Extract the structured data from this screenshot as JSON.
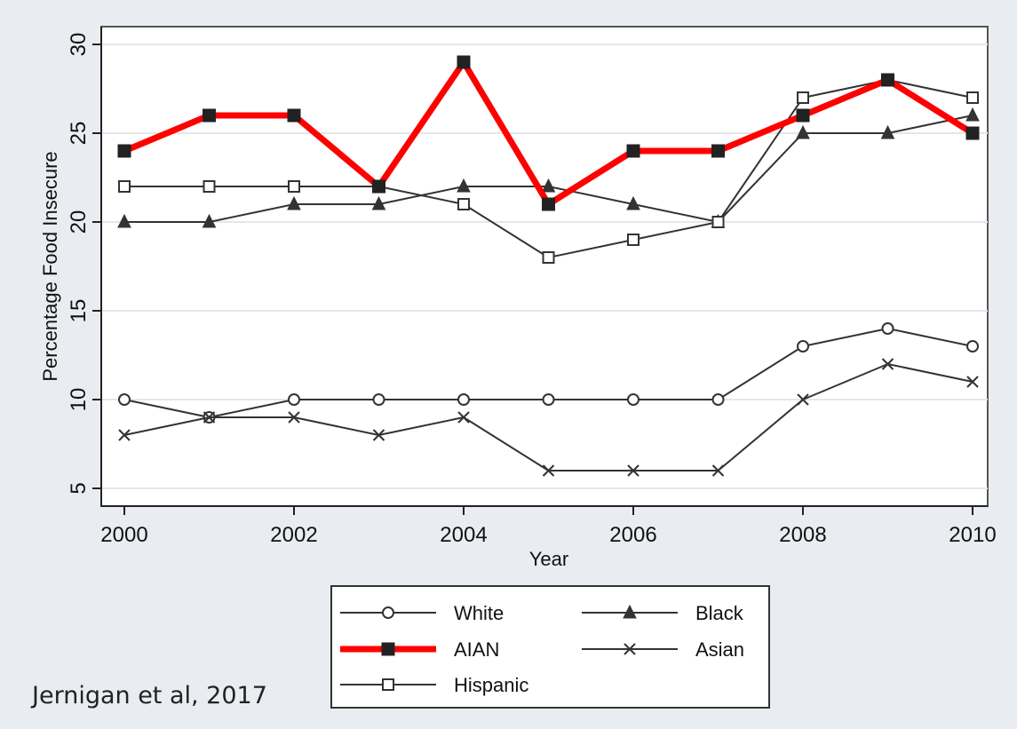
{
  "chart_data": {
    "type": "line",
    "xlabel": "Year",
    "ylabel": "Percentage Food Insecure",
    "xlim": [
      2000,
      2010
    ],
    "ylim": [
      5,
      30
    ],
    "x_ticks": [
      2000,
      2002,
      2004,
      2006,
      2008,
      2010
    ],
    "y_ticks": [
      5,
      10,
      15,
      20,
      25,
      30
    ],
    "grid": "horizontal",
    "legend_position": "bottom",
    "x": [
      2000,
      2001,
      2002,
      2003,
      2004,
      2005,
      2006,
      2007,
      2008,
      2009,
      2010
    ],
    "series": [
      {
        "name": "White",
        "marker": "circle",
        "color": "#333333",
        "highlight": false,
        "values": [
          10,
          9,
          10,
          10,
          10,
          10,
          10,
          10,
          13,
          14,
          13
        ]
      },
      {
        "name": "Black",
        "marker": "triangle",
        "color": "#333333",
        "highlight": false,
        "values": [
          20,
          20,
          21,
          21,
          22,
          22,
          21,
          20,
          25,
          25,
          26
        ]
      },
      {
        "name": "AIAN",
        "marker": "filled-square",
        "color": "#ff0000",
        "highlight": true,
        "values": [
          24,
          26,
          26,
          22,
          29,
          21,
          24,
          24,
          26,
          28,
          25
        ]
      },
      {
        "name": "Asian",
        "marker": "x",
        "color": "#333333",
        "highlight": false,
        "values": [
          8,
          9,
          9,
          8,
          9,
          6,
          6,
          6,
          10,
          12,
          11
        ]
      },
      {
        "name": "Hispanic",
        "marker": "open-square",
        "color": "#333333",
        "highlight": false,
        "values": [
          22,
          22,
          22,
          22,
          21,
          18,
          19,
          20,
          27,
          28,
          27
        ]
      }
    ]
  },
  "source_note": "Jernigan et al, 2017"
}
